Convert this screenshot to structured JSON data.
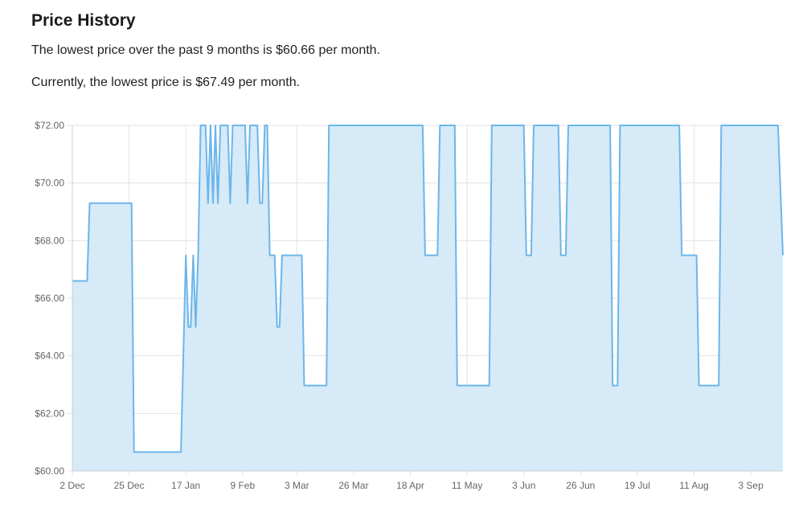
{
  "header": {
    "title": "Price History",
    "lowest_text": "The lowest price over the past 9 months is $60.66 per month.",
    "current_text": "Currently, the lowest price is $67.49 per month."
  },
  "colors": {
    "line": "#6cb6ea",
    "fill": "#d6eaf8",
    "grid": "#e3e3e3"
  },
  "chart_data": {
    "type": "area",
    "title": "",
    "xlabel": "",
    "ylabel": "",
    "ylim": [
      60,
      72
    ],
    "grid": true,
    "legend": "none",
    "ytick_labels": [
      "$60.00",
      "$62.00",
      "$64.00",
      "$66.00",
      "$68.00",
      "$70.00",
      "$72.00"
    ],
    "y_ticks": [
      60,
      62,
      64,
      66,
      68,
      70,
      72
    ],
    "x_ticks": [
      {
        "label": "2 Dec",
        "day": 0
      },
      {
        "label": "25 Dec",
        "day": 23
      },
      {
        "label": "17 Jan",
        "day": 46
      },
      {
        "label": "9 Feb",
        "day": 69
      },
      {
        "label": "3 Mar",
        "day": 91
      },
      {
        "label": "26 Mar",
        "day": 114
      },
      {
        "label": "18 Apr",
        "day": 137
      },
      {
        "label": "11 May",
        "day": 160
      },
      {
        "label": "3 Jun",
        "day": 183
      },
      {
        "label": "26 Jun",
        "day": 206
      },
      {
        "label": "19 Jul",
        "day": 229
      },
      {
        "label": "11 Aug",
        "day": 252
      },
      {
        "label": "3 Sep",
        "day": 275
      }
    ],
    "x_range_days": [
      0,
      288
    ],
    "series": [
      {
        "points": [
          [
            0,
            66.6
          ],
          [
            6,
            66.6
          ],
          [
            7,
            69.3
          ],
          [
            24,
            69.3
          ],
          [
            25,
            60.66
          ],
          [
            44,
            60.66
          ],
          [
            46,
            67.49
          ],
          [
            47,
            65.0
          ],
          [
            48,
            65.0
          ],
          [
            49,
            67.49
          ],
          [
            50,
            65.0
          ],
          [
            51,
            67.49
          ],
          [
            52,
            72
          ],
          [
            54,
            72
          ],
          [
            55,
            69.3
          ],
          [
            56,
            72
          ],
          [
            57,
            69.3
          ],
          [
            58,
            72
          ],
          [
            59,
            69.3
          ],
          [
            60,
            72
          ],
          [
            63,
            72
          ],
          [
            64,
            69.3
          ],
          [
            65,
            72
          ],
          [
            70,
            72
          ],
          [
            71,
            69.3
          ],
          [
            72,
            72
          ],
          [
            75,
            72
          ],
          [
            76,
            69.3
          ],
          [
            77,
            69.3
          ],
          [
            78,
            72
          ],
          [
            79,
            72
          ],
          [
            80,
            67.49
          ],
          [
            82,
            67.49
          ],
          [
            83,
            65.0
          ],
          [
            84,
            65.0
          ],
          [
            85,
            67.49
          ],
          [
            93,
            67.49
          ],
          [
            94,
            62.97
          ],
          [
            103,
            62.97
          ],
          [
            104,
            72
          ],
          [
            142,
            72
          ],
          [
            143,
            67.49
          ],
          [
            148,
            67.49
          ],
          [
            149,
            72
          ],
          [
            155,
            72
          ],
          [
            156,
            62.97
          ],
          [
            169,
            62.97
          ],
          [
            170,
            72
          ],
          [
            183,
            72
          ],
          [
            184,
            67.49
          ],
          [
            186,
            67.49
          ],
          [
            187,
            72
          ],
          [
            197,
            72
          ],
          [
            198,
            67.49
          ],
          [
            200,
            67.49
          ],
          [
            201,
            72
          ],
          [
            218,
            72
          ],
          [
            219,
            62.97
          ],
          [
            221,
            62.97
          ],
          [
            222,
            72
          ],
          [
            246,
            72
          ],
          [
            247,
            67.49
          ],
          [
            253,
            67.49
          ],
          [
            254,
            62.97
          ],
          [
            262,
            62.97
          ],
          [
            263,
            72
          ],
          [
            286,
            72
          ],
          [
            288,
            67.49
          ]
        ]
      }
    ]
  }
}
